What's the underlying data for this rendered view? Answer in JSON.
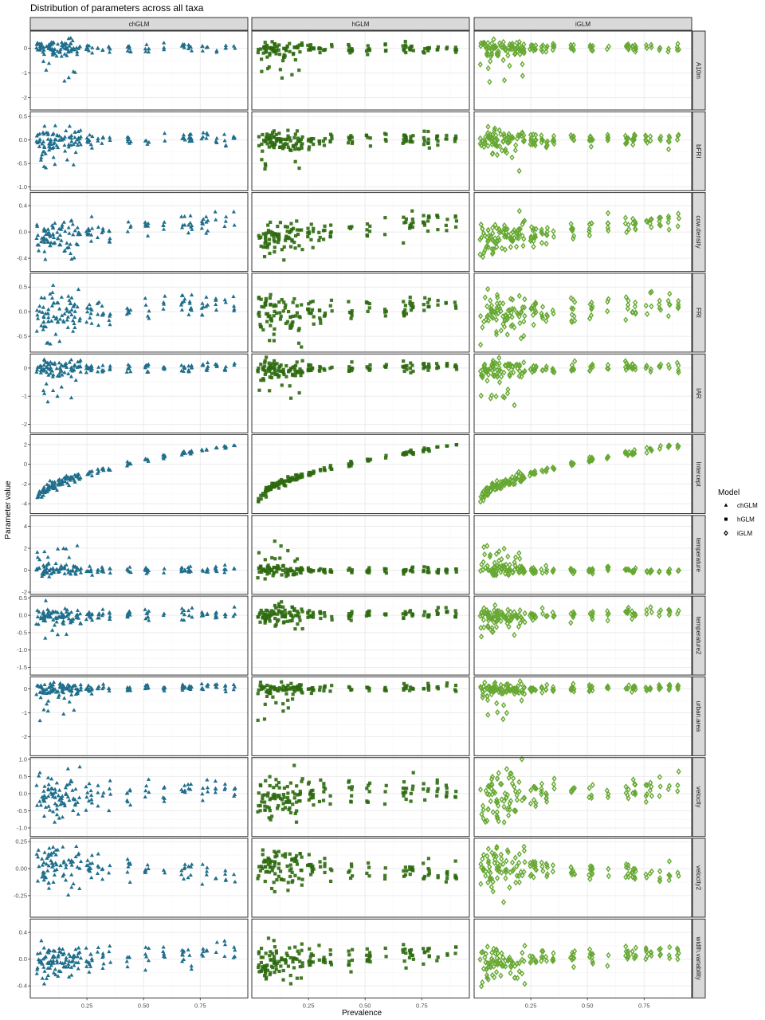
{
  "chart_data": {
    "type": "scatter",
    "title": "Distribution of parameters across all taxa",
    "xlabel": "Prevalence",
    "ylabel": "Parameter value",
    "xlim": [
      0.0,
      0.96
    ],
    "x_ticks": [
      0.25,
      0.5,
      0.75
    ],
    "x_tick_labels": [
      "0.25",
      "0.50",
      "0.75"
    ],
    "grid": true,
    "legend": {
      "title": "Model",
      "position": "right",
      "entries": [
        {
          "name": "chGLM",
          "shape": "triangle",
          "color": "#1f6e8c"
        },
        {
          "name": "hGLM",
          "shape": "square",
          "color": "#2d6a0f"
        },
        {
          "name": "iGLM",
          "shape": "diamond",
          "color": "#66a832"
        }
      ]
    },
    "columns": [
      "chGLM",
      "hGLM",
      "iGLM"
    ],
    "colors": {
      "chGLM": "#1f6e8c",
      "hGLM": "#2d6a0f",
      "iGLM": "#66a832"
    },
    "x_prevalence": [
      0.03,
      0.04,
      0.05,
      0.06,
      0.06,
      0.07,
      0.08,
      0.08,
      0.09,
      0.1,
      0.1,
      0.11,
      0.12,
      0.13,
      0.14,
      0.15,
      0.16,
      0.17,
      0.18,
      0.19,
      0.2,
      0.21,
      0.22,
      0.25,
      0.26,
      0.27,
      0.3,
      0.32,
      0.35,
      0.43,
      0.44,
      0.51,
      0.52,
      0.59,
      0.67,
      0.68,
      0.7,
      0.71,
      0.76,
      0.78,
      0.82,
      0.86,
      0.9
    ],
    "rows": [
      {
        "name": "A10m",
        "ylim": [
          -2.5,
          0.7
        ],
        "ticks": [
          0,
          -1,
          -2
        ],
        "tick_labels": [
          "0",
          "-1",
          "-2"
        ],
        "trend": 0.0,
        "curve": 0.0,
        "spread": 0.35,
        "low_tail": 1.3
      },
      {
        "name": "bFRI",
        "ylim": [
          -1.08,
          0.6
        ],
        "ticks": [
          0.5,
          0.0,
          -0.5,
          -1.0
        ],
        "tick_labels": [
          "0.5",
          "0.0",
          "-0.5",
          "-1.0"
        ],
        "trend": 0.05,
        "curve": 0.0,
        "spread": 0.28,
        "low_tail": 0.5
      },
      {
        "name": "cow.density",
        "ylim": [
          -0.6,
          0.6
        ],
        "ticks": [
          0.4,
          0.0,
          -0.4
        ],
        "tick_labels": [
          "0.4",
          "0.0",
          "-0.4"
        ],
        "trend": 0.35,
        "curve": 0.0,
        "spread": 0.3,
        "low_tail": 0.0
      },
      {
        "name": "FRI",
        "ylim": [
          -0.82,
          0.78
        ],
        "ticks": [
          0.5,
          0.0,
          -0.5
        ],
        "tick_labels": [
          "0.5",
          "0.0",
          "-0.5"
        ],
        "trend": 0.3,
        "curve": 0.0,
        "spread": 0.5,
        "low_tail": 0.0
      },
      {
        "name": "IAR",
        "ylim": [
          -2.3,
          0.5
        ],
        "ticks": [
          0,
          -1,
          -2
        ],
        "tick_labels": [
          "0",
          "-1",
          "-2"
        ],
        "trend": 0.1,
        "curve": 0.0,
        "spread": 0.35,
        "low_tail": 1.2
      },
      {
        "name": "Intercept",
        "ylim": [
          -5.0,
          3.0
        ],
        "ticks": [
          2,
          0,
          -2,
          -4
        ],
        "tick_labels": [
          "2",
          "0",
          "-2",
          "-4"
        ],
        "trend": 6.3,
        "curve": -3.6,
        "spread": 0.5,
        "low_tail": 0.0
      },
      {
        "name": "temperature",
        "ylim": [
          -2.2,
          5.0
        ],
        "ticks": [
          4,
          2,
          0,
          -2
        ],
        "tick_labels": [
          "4",
          "2",
          "0",
          "-2"
        ],
        "trend": 0.0,
        "curve": 0.0,
        "spread": 0.6,
        "low_tail": -2.0
      },
      {
        "name": "temperature2",
        "ylim": [
          -1.72,
          0.55
        ],
        "ticks": [
          0.5,
          0.0,
          -0.5,
          -1.0,
          -1.5
        ],
        "tick_labels": [
          "0.5",
          "0.0",
          "-0.5",
          "-1.0",
          "-1.5"
        ],
        "trend": 0.1,
        "curve": 0.0,
        "spread": 0.3,
        "low_tail": 0.6
      },
      {
        "name": "urban.area",
        "ylim": [
          -2.8,
          0.5
        ],
        "ticks": [
          0,
          -1,
          -2
        ],
        "tick_labels": [
          "0",
          "-1",
          "-2"
        ],
        "trend": 0.1,
        "curve": 0.0,
        "spread": 0.3,
        "low_tail": 1.2
      },
      {
        "name": "velocity",
        "ylim": [
          -1.25,
          1.05
        ],
        "ticks": [
          1.0,
          0.5,
          0.0,
          -0.5,
          -1.0
        ],
        "tick_labels": [
          "1.0",
          "0.5",
          "0.0",
          "-0.5",
          "-1.0"
        ],
        "trend": 0.3,
        "curve": 0.0,
        "spread": 0.8,
        "low_tail": 0.0
      },
      {
        "name": "velocity2",
        "ylim": [
          -0.45,
          0.28
        ],
        "ticks": [
          0.25,
          0.0,
          -0.25
        ],
        "tick_labels": [
          "0.25",
          "0.00",
          "-0.25"
        ],
        "trend": -0.1,
        "curve": 0.0,
        "spread": 0.2,
        "low_tail": 0.15
      },
      {
        "name": "width.variability",
        "ylim": [
          -0.58,
          0.6
        ],
        "ticks": [
          0.4,
          0.0,
          -0.4
        ],
        "tick_labels": [
          "0.4",
          "0.0",
          "-0.4"
        ],
        "trend": 0.2,
        "curve": 0.0,
        "spread": 0.3,
        "low_tail": 0.0
      }
    ]
  }
}
